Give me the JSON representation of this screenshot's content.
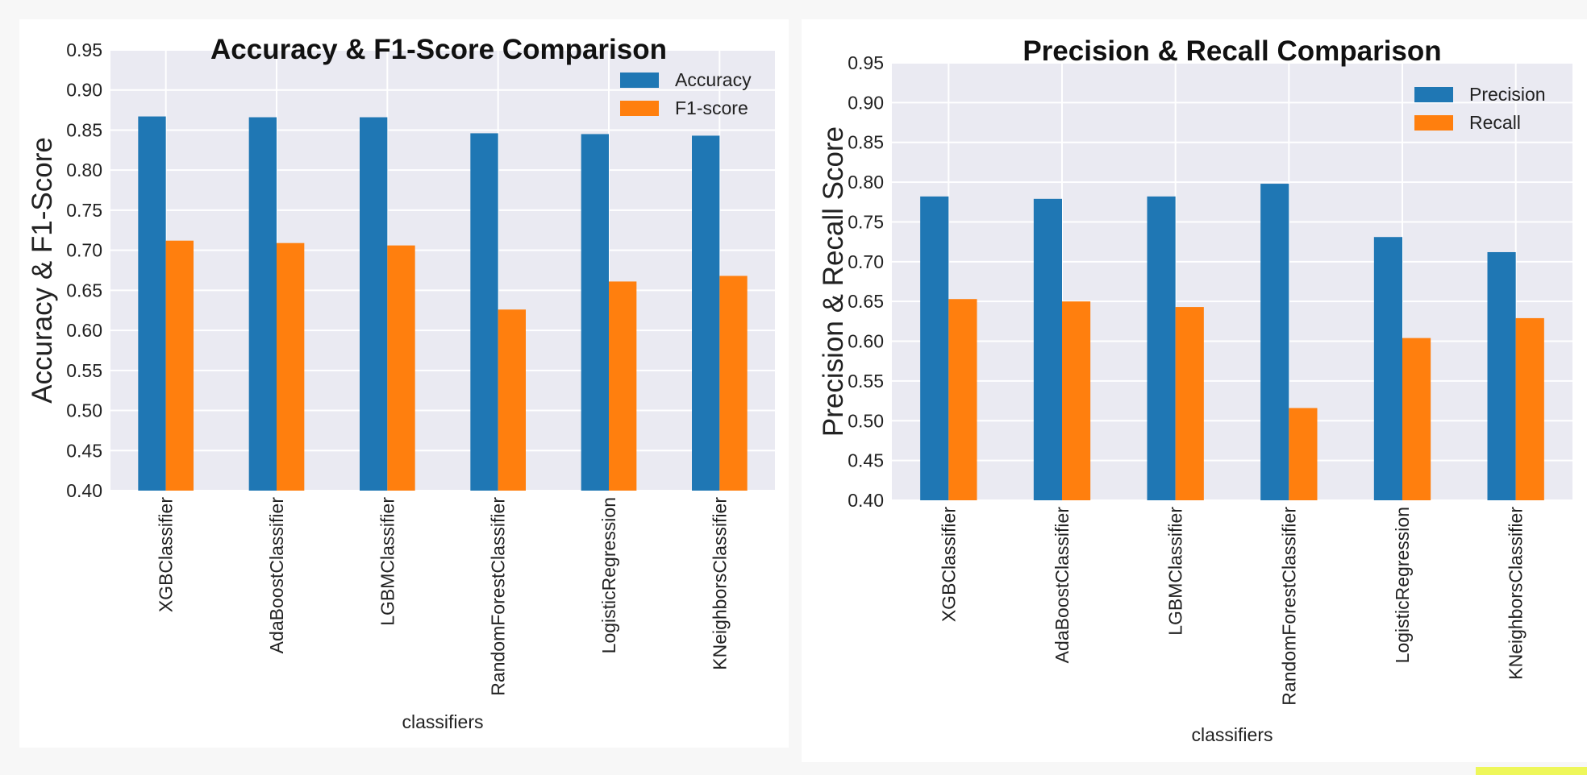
{
  "chart_data": [
    {
      "type": "bar",
      "title": "Accuracy & F1-Score Comparison",
      "xlabel": "classifiers",
      "ylabel": "Accuracy & F1-Score",
      "ylim": [
        0.4,
        0.95
      ],
      "yticks": [
        "0.40",
        "0.45",
        "0.50",
        "0.55",
        "0.60",
        "0.65",
        "0.70",
        "0.75",
        "0.80",
        "0.85",
        "0.90",
        "0.95"
      ],
      "categories": [
        "XGBClassifier",
        "AdaBoostClassifier",
        "LGBMClassifier",
        "RandomForestClassifier",
        "LogisticRegression",
        "KNeighborsClassifier"
      ],
      "series": [
        {
          "name": "Accuracy",
          "color": "#1f77b4",
          "values": [
            0.867,
            0.866,
            0.866,
            0.846,
            0.845,
            0.843
          ]
        },
        {
          "name": "F1-score",
          "color": "#ff7f0e",
          "values": [
            0.712,
            0.709,
            0.706,
            0.626,
            0.661,
            0.668
          ]
        }
      ],
      "grid": true,
      "legend": "top-right"
    },
    {
      "type": "bar",
      "title": "Precision & Recall Comparison",
      "xlabel": "classifiers",
      "ylabel": "Precision & Recall Score",
      "ylim": [
        0.4,
        0.95
      ],
      "yticks": [
        "0.40",
        "0.45",
        "0.50",
        "0.55",
        "0.60",
        "0.65",
        "0.70",
        "0.75",
        "0.80",
        "0.85",
        "0.90",
        "0.95"
      ],
      "categories": [
        "XGBClassifier",
        "AdaBoostClassifier",
        "LGBMClassifier",
        "RandomForestClassifier",
        "LogisticRegression",
        "KNeighborsClassifier"
      ],
      "series": [
        {
          "name": "Precision",
          "color": "#1f77b4",
          "values": [
            0.782,
            0.779,
            0.782,
            0.798,
            0.731,
            0.712
          ]
        },
        {
          "name": "Recall",
          "color": "#ff7f0e",
          "values": [
            0.653,
            0.65,
            0.643,
            0.516,
            0.604,
            0.629
          ]
        }
      ],
      "grid": true,
      "legend": "top-right"
    }
  ]
}
